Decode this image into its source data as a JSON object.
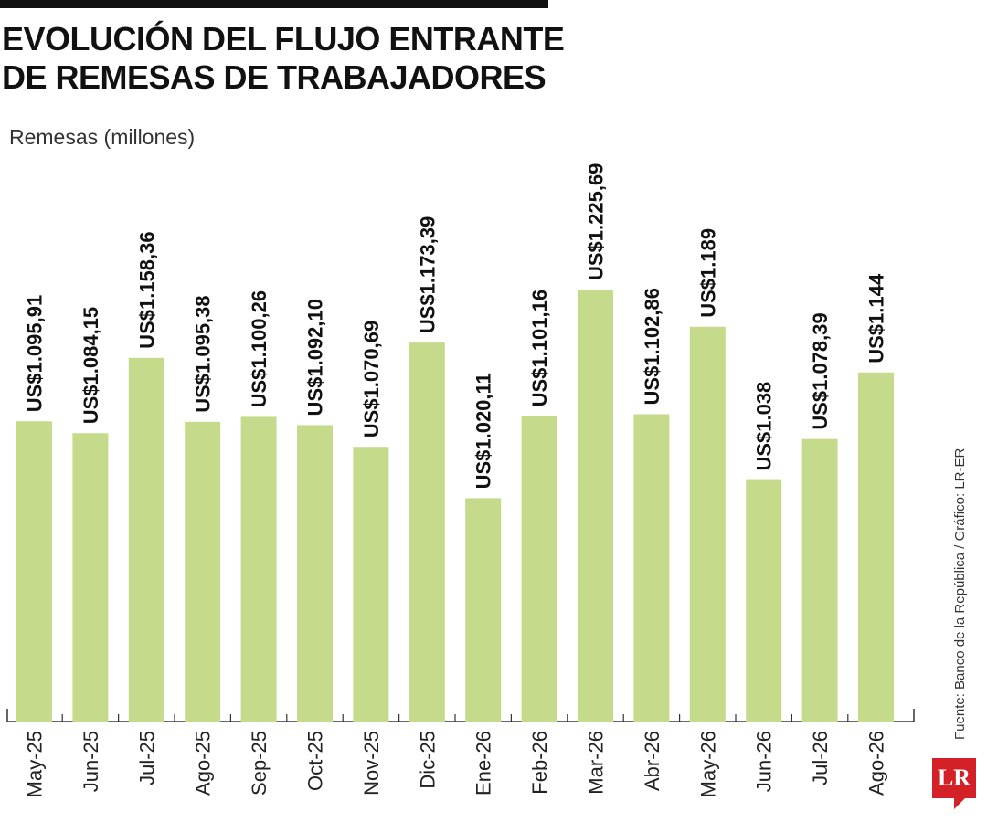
{
  "header": {
    "title_line1": "EVOLUCIÓN DEL FLUJO ENTRANTE",
    "title_line2": "DE REMESAS DE TRABAJADORES"
  },
  "source": "Fuente: Banco de la República / Gráfico: LR-ER",
  "logo": "LR",
  "colors": {
    "bar": "#c5da8b",
    "axis": "#333333",
    "logo": "#d42027"
  },
  "chart_data": {
    "type": "bar",
    "title": "EVOLUCIÓN DEL FLUJO ENTRANTE DE REMESAS DE TRABAJADORES",
    "ylabel": "Remesas (millones)",
    "xlabel": "",
    "categories": [
      "May-25",
      "Jun-25",
      "Jul-25",
      "Ago-25",
      "Sep-25",
      "Oct-25",
      "Nov-25",
      "Dic-25",
      "Ene-26",
      "Feb-26",
      "Mar-26",
      "Abr-26",
      "May-26",
      "Jun-26",
      "Jul-26",
      "Ago-26"
    ],
    "values": [
      1095.91,
      1084.15,
      1158.36,
      1095.38,
      1100.26,
      1092.1,
      1070.69,
      1173.39,
      1020.11,
      1101.16,
      1225.69,
      1102.86,
      1189,
      1038,
      1078.39,
      1144
    ],
    "value_labels": [
      "US$1.095,91",
      "US$1.084,15",
      "US$1.158,36",
      "US$1.095,38",
      "US$1.100,26",
      "US$1.092,10",
      "US$1.070,69",
      "US$1.173,39",
      "US$1.020,11",
      "US$1.101,16",
      "US$1.225,69",
      "US$1.102,86",
      "US$1.189",
      "US$1.038",
      "US$1.078,39",
      "US$1.144"
    ],
    "ylim": [
      800,
      1250
    ],
    "grid": false,
    "legend": "none"
  }
}
